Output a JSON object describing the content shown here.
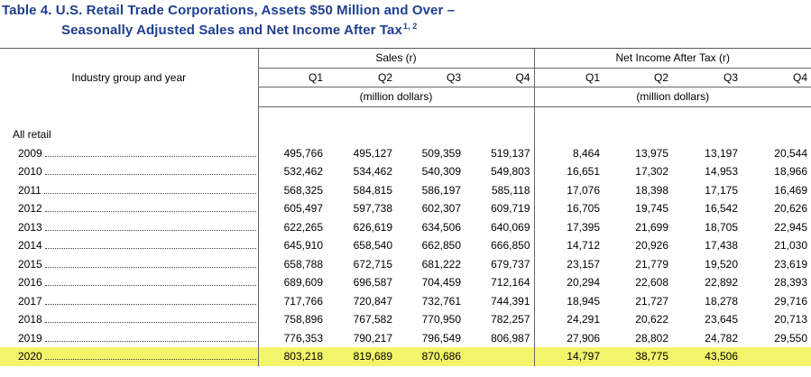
{
  "title": {
    "line1": "Table 4.  U.S. Retail Trade Corporations, Assets $50 Million and Over –",
    "line2": "Seasonally Adjusted Sales and Net Income After Tax",
    "footnote_refs": "1, 2"
  },
  "headers": {
    "row_label": "Industry group and year",
    "sales": "Sales (r)",
    "net_income": "Net Income After Tax (r)",
    "quarters": [
      "Q1",
      "Q2",
      "Q3",
      "Q4",
      "Q1",
      "Q2",
      "Q3",
      "Q4"
    ],
    "units_sales": "(million dollars)",
    "units_income": "(million dollars)"
  },
  "section_label": "All retail",
  "highlight_color": "#f2f56a",
  "rows": [
    {
      "year": "2009",
      "values": [
        "495,766",
        "495,127",
        "509,359",
        "519,137",
        "8,464",
        "13,975",
        "13,197",
        "20,544"
      ]
    },
    {
      "year": "2010",
      "values": [
        "532,462",
        "534,462",
        "540,309",
        "549,803",
        "16,651",
        "17,302",
        "14,953",
        "18,966"
      ]
    },
    {
      "year": "2011",
      "values": [
        "568,325",
        "584,815",
        "586,197",
        "585,118",
        "17,076",
        "18,398",
        "17,175",
        "16,469"
      ]
    },
    {
      "year": "2012",
      "values": [
        "605,497",
        "597,738",
        "602,307",
        "609,719",
        "16,705",
        "19,745",
        "16,542",
        "20,626"
      ]
    },
    {
      "year": "2013",
      "values": [
        "622,265",
        "626,619",
        "634,506",
        "640,069",
        "17,395",
        "21,699",
        "18,705",
        "22,945"
      ]
    },
    {
      "year": "2014",
      "values": [
        "645,910",
        "658,540",
        "662,850",
        "666,850",
        "14,712",
        "20,926",
        "17,438",
        "21,030"
      ]
    },
    {
      "year": "2015",
      "values": [
        "658,788",
        "672,715",
        "681,222",
        "679,737",
        "23,157",
        "21,779",
        "19,520",
        "23,619"
      ]
    },
    {
      "year": "2016",
      "values": [
        "689,609",
        "696,587",
        "704,459",
        "712,164",
        "20,294",
        "22,608",
        "22,892",
        "28,393"
      ]
    },
    {
      "year": "2017",
      "values": [
        "717,766",
        "720,847",
        "732,761",
        "744,391",
        "18,945",
        "21,727",
        "18,278",
        "29,716"
      ]
    },
    {
      "year": "2018",
      "values": [
        "758,896",
        "767,582",
        "770,950",
        "782,257",
        "24,291",
        "20,622",
        "23,645",
        "20,713"
      ]
    },
    {
      "year": "2019",
      "values": [
        "776,353",
        "790,217",
        "796,549",
        "806,987",
        "27,906",
        "28,802",
        "24,782",
        "29,550"
      ]
    },
    {
      "year": "2020",
      "values": [
        "803,218",
        "819,689",
        "870,686",
        "",
        "14,797",
        "38,775",
        "43,506",
        ""
      ]
    }
  ]
}
